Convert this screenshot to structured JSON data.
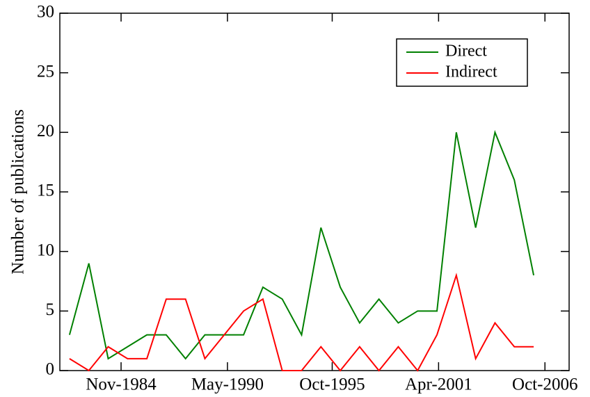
{
  "chart_data": {
    "type": "line",
    "ylabel": "Number of publications",
    "x": [
      "1982-03",
      "1983-03",
      "1984-03",
      "1985-03",
      "1986-03",
      "1987-03",
      "1988-03",
      "1989-03",
      "1990-03",
      "1991-03",
      "1992-03",
      "1993-03",
      "1994-03",
      "1995-03",
      "1996-03",
      "1997-03",
      "1998-03",
      "1999-03",
      "2000-03",
      "2001-03",
      "2002-03",
      "2003-03",
      "2004-03",
      "2005-03",
      "2006-03"
    ],
    "series": [
      {
        "name": "Direct",
        "color": "#008000",
        "values": [
          3,
          9,
          1,
          2,
          3,
          3,
          1,
          3,
          3,
          3,
          7,
          6,
          3,
          12,
          7,
          4,
          6,
          4,
          5,
          5,
          20,
          12,
          20,
          16,
          8
        ]
      },
      {
        "name": "Indirect",
        "color": "#ff0000",
        "values": [
          1,
          0,
          2,
          1,
          1,
          6,
          6,
          1,
          3,
          5,
          6,
          0,
          0,
          2,
          0,
          2,
          0,
          2,
          0,
          3,
          8,
          1,
          4,
          2,
          2
        ]
      }
    ],
    "xlim": [
      "1981-09",
      "2008-01"
    ],
    "xticks": [
      {
        "value": "1984-11",
        "label": "Nov-1984"
      },
      {
        "value": "1990-05",
        "label": "May-1990"
      },
      {
        "value": "1995-10",
        "label": "Oct-1995"
      },
      {
        "value": "2001-04",
        "label": "Apr-2001"
      },
      {
        "value": "2006-10",
        "label": "Oct-2006"
      }
    ],
    "ylim": [
      0,
      30
    ],
    "yticks": [
      0,
      5,
      10,
      15,
      20,
      25,
      30
    ],
    "legend": "upper right"
  }
}
